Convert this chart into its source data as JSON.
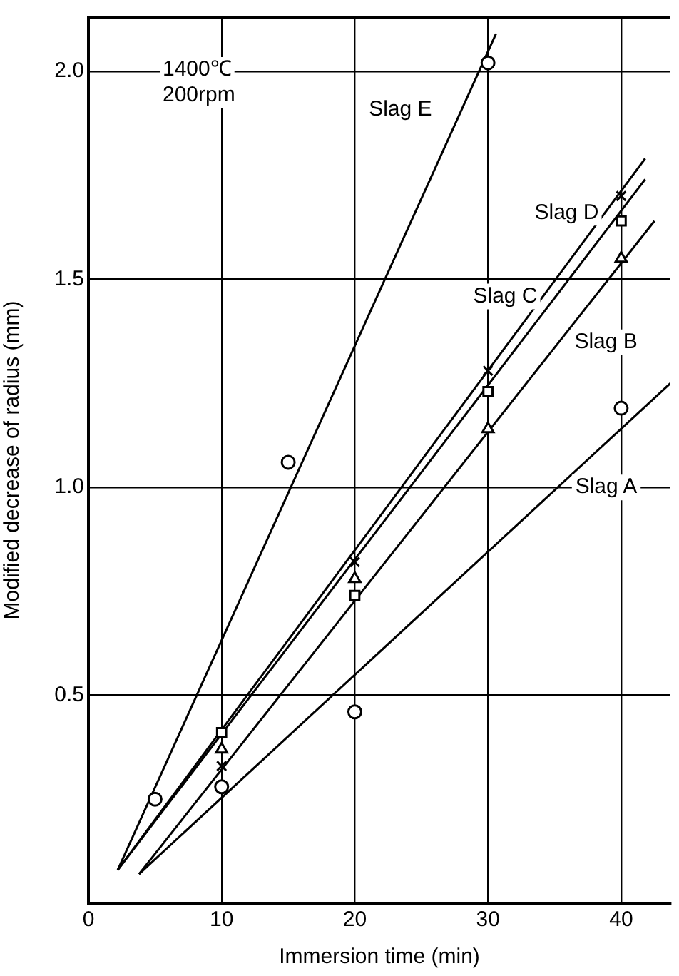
{
  "chart_data": {
    "type": "scatter",
    "xlabel": "Immersion time (min)",
    "ylabel": "Modified decrease of radius (mm)",
    "xlim": [
      0,
      43.7
    ],
    "xticks": [
      0,
      10,
      20,
      30,
      40
    ],
    "ylim": [
      0,
      2.13
    ],
    "yticks": [
      {
        "value": 0.5,
        "label": "0.5"
      },
      {
        "value": 1,
        "label": "1.0"
      },
      {
        "value": 1.5,
        "label": "1.5"
      },
      {
        "value": 2,
        "label": "2.0"
      }
    ],
    "grid": true,
    "legend": false,
    "series": [
      {
        "color": "#000000",
        "marker": "circle",
        "x": [
          5,
          15,
          30
        ],
        "values": [
          0.25,
          1.06,
          2.02
        ]
      },
      {
        "color": "#000000",
        "marker": "circle",
        "x": [
          10,
          20,
          40
        ],
        "values": [
          0.28,
          0.46,
          1.19
        ]
      },
      {
        "color": "#000000",
        "marker": "triangle",
        "x": [
          10,
          20,
          30,
          40
        ],
        "values": [
          0.37,
          0.78,
          1.14,
          1.55
        ]
      },
      {
        "color": "#000000",
        "marker": "square",
        "x": [
          10,
          20,
          30,
          40
        ],
        "values": [
          0.41,
          0.74,
          1.23,
          1.64
        ]
      },
      {
        "color": "#000000",
        "marker": "cross",
        "x": [
          10,
          20,
          30,
          40
        ],
        "values": [
          0.33,
          0.82,
          1.28,
          1.7
        ]
      },
      {
        "type": "line",
        "name": "Slag E",
        "color": "#000000",
        "marker": "none",
        "x": [
          2.2,
          30.6
        ],
        "values": [
          0.08,
          2.09
        ]
      },
      {
        "type": "line",
        "name": "Slag D",
        "color": "#000000",
        "marker": "none",
        "x": [
          2.2,
          41.8
        ],
        "values": [
          0.08,
          1.79
        ]
      },
      {
        "type": "line",
        "name": "Slag C",
        "color": "#000000",
        "marker": "none",
        "x": [
          2.2,
          41.8
        ],
        "values": [
          0.08,
          1.74
        ]
      },
      {
        "type": "line",
        "name": "Slag B",
        "color": "#000000",
        "marker": "none",
        "x": [
          3.8,
          42.5
        ],
        "values": [
          0.07,
          1.64
        ]
      },
      {
        "type": "line",
        "name": "Slag A",
        "color": "#000000",
        "marker": "none",
        "x": [
          3.8,
          43.7
        ],
        "values": [
          0.07,
          1.25
        ]
      }
    ],
    "annotations": [
      "1400℃",
      "200rpm"
    ]
  }
}
